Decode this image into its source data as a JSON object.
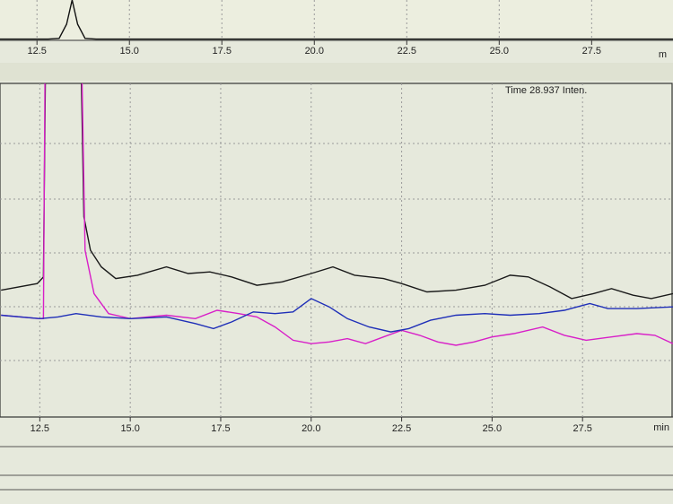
{
  "chart_data": [
    {
      "type": "line",
      "x_label": "m",
      "xlim": [
        11.5,
        29.7
      ],
      "ylim": [
        0,
        100
      ],
      "xticks": [
        12.5,
        {
          "value": 15,
          "label": "15.0"
        },
        17.5,
        {
          "value": 20,
          "label": "20.0"
        },
        22.5,
        {
          "value": 25,
          "label": "25.0"
        },
        27.5
      ],
      "grid": true,
      "series": [
        {
          "color": "#111111",
          "x": [
            11.5,
            12.8,
            13.1,
            13.3,
            13.45,
            13.6,
            13.8,
            14.1,
            15,
            29.7
          ],
          "values": [
            3,
            3,
            5,
            40,
            100,
            40,
            5,
            3,
            3,
            3
          ]
        }
      ]
    },
    {
      "type": "line",
      "x_label": "min",
      "annotation": "Time  28.937  Inten.",
      "xlim": [
        11.4,
        30.0
      ],
      "ylim": [
        0,
        100
      ],
      "xticks": [
        12.5,
        {
          "value": 15,
          "label": "15.0"
        },
        17.5,
        {
          "value": 20,
          "label": "20.0"
        },
        22.5,
        {
          "value": 25,
          "label": "25.0"
        },
        27.5
      ],
      "grid": true,
      "series": [
        {
          "color": "#1a1a1a",
          "x": [
            11.43,
            12.43,
            12.6,
            12.68,
            13.6,
            13.72,
            13.9,
            14.2,
            14.6,
            15.2,
            16.0,
            16.6,
            17.2,
            17.8,
            18.5,
            19.2,
            20.0,
            20.6,
            21.2,
            22.0,
            22.5,
            23.2,
            24.0,
            24.8,
            25.5,
            26.0,
            26.6,
            27.2,
            27.8,
            28.3,
            28.9,
            29.4,
            30.0
          ],
          "values": [
            38,
            40,
            42,
            130,
            130,
            60,
            50,
            45,
            41.5,
            42.5,
            45,
            43,
            43.5,
            42,
            39.5,
            40.5,
            43,
            45,
            42.5,
            41.5,
            40,
            37.5,
            38,
            39.5,
            42.5,
            42,
            39,
            35.5,
            37,
            38.5,
            36.5,
            35.5,
            37
          ]
        },
        {
          "color": "#d81fc8",
          "x": [
            11.43,
            12.5,
            12.6,
            12.66,
            13.62,
            13.75,
            14.0,
            14.4,
            15.0,
            16.0,
            16.8,
            17.4,
            18.0,
            18.5,
            19.0,
            19.5,
            20.0,
            20.5,
            21.0,
            21.5,
            22.0,
            22.5,
            23.0,
            23.5,
            24.0,
            24.5,
            25.0,
            25.6,
            26.4,
            27.0,
            27.6,
            28.3,
            29.0,
            29.5,
            30.0
          ],
          "values": [
            30.5,
            29.5,
            29.5,
            130,
            130,
            50,
            37,
            31,
            29.5,
            30.5,
            29.5,
            32,
            31,
            30,
            27,
            23,
            22,
            22.5,
            23.5,
            22,
            24,
            26,
            24.5,
            22.5,
            21.5,
            22.5,
            24,
            25,
            27,
            24.5,
            23,
            24,
            25,
            24.5,
            22
          ]
        },
        {
          "color": "#1f2fb8",
          "x": [
            11.43,
            12.5,
            13.0,
            13.5,
            14.2,
            15.0,
            16.0,
            16.8,
            17.3,
            17.8,
            18.4,
            19.0,
            19.5,
            20.0,
            20.5,
            21.0,
            21.6,
            22.2,
            22.7,
            23.3,
            24.0,
            24.8,
            25.5,
            26.3,
            27.0,
            27.7,
            28.2,
            29.0,
            30.0
          ],
          "values": [
            30.5,
            29.5,
            30,
            31,
            30,
            29.5,
            30,
            28,
            26.5,
            28.5,
            31.5,
            31,
            31.5,
            35.5,
            33,
            29.5,
            27,
            25.5,
            26.5,
            29,
            30.5,
            31,
            30.5,
            31,
            32,
            34,
            32.5,
            32.5,
            33
          ]
        }
      ]
    }
  ]
}
